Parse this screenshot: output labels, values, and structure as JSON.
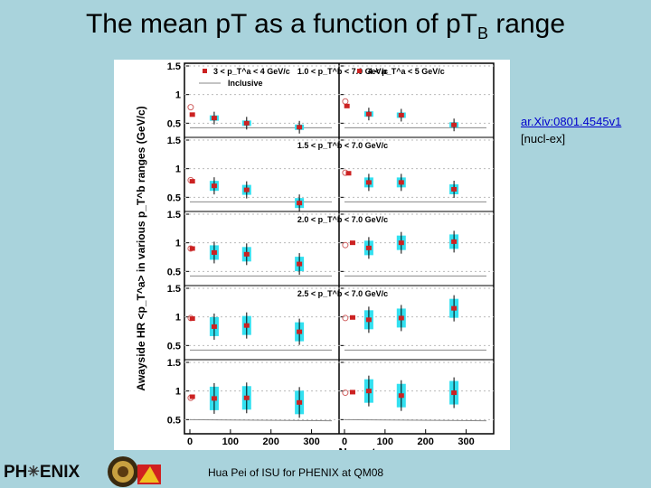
{
  "slide": {
    "title_main": "The mean pT as a function of pT",
    "title_sub": "B",
    "title_tail": " range",
    "reference_link": "ar.Xiv:0801.4545v1",
    "reference_tag": "[nucl-ex]",
    "footer": "Hua Pei of ISU for PHENIX at QM08",
    "logo_left": "PH",
    "logo_right": "ENIX",
    "logo_star": "✳"
  },
  "colors": {
    "background": "#a9d3dc",
    "marker": "#cc2222",
    "syst_band": "#33e0f0",
    "open_marker": "#d06060",
    "inclusive_line": "#888888"
  },
  "chart_data": {
    "type": "scatter",
    "ylabel": "Awayside HR <p_T^a> in various p_T^b ranges (GeV/c)",
    "xlabel": "N_part",
    "xlim": [
      0,
      350
    ],
    "ylim": [
      0.3,
      1.5
    ],
    "x_ticks": [
      "0",
      "100",
      "200",
      "300"
    ],
    "y_ticks": [
      "0.5",
      "1",
      "1.5"
    ],
    "legend": [
      "3 < p_T^a < 4 GeV/c",
      "4 < p_T^a < 5 GeV/c",
      "Inclusive"
    ],
    "columns": [
      "3 < p_T^a < 4 GeV/c",
      "4 < p_T^a < 5 GeV/c"
    ],
    "rows": [
      {
        "label": "1.0 < p_T^b < 7.0 GeV/c",
        "series": [
          {
            "name": "3 < p_T^a < 4 GeV/c",
            "points": [
              {
                "x": 2,
                "y": 0.78,
                "open": true
              },
              {
                "x": 6,
                "y": 0.65
              },
              {
                "x": 60,
                "y": 0.59
              },
              {
                "x": 140,
                "y": 0.5
              },
              {
                "x": 270,
                "y": 0.43
              }
            ],
            "inclusive": [
              {
                "x": 0,
                "y": 0.42
              },
              {
                "x": 350,
                "y": 0.42
              }
            ]
          },
          {
            "name": "4 < p_T^a < 5 GeV/c",
            "points": [
              {
                "x": 2,
                "y": 0.88,
                "open": true
              },
              {
                "x": 6,
                "y": 0.8
              },
              {
                "x": 60,
                "y": 0.66
              },
              {
                "x": 140,
                "y": 0.64
              },
              {
                "x": 270,
                "y": 0.47
              }
            ],
            "inclusive": [
              {
                "x": 0,
                "y": 0.42
              },
              {
                "x": 350,
                "y": 0.42
              }
            ]
          }
        ]
      },
      {
        "label": "1.5 < p_T^b < 7.0 GeV/c",
        "series": [
          {
            "name": "3 < p_T^a < 4 GeV/c",
            "points": [
              {
                "x": 2,
                "y": 0.8,
                "open": true
              },
              {
                "x": 6,
                "y": 0.78
              },
              {
                "x": 60,
                "y": 0.7
              },
              {
                "x": 140,
                "y": 0.63
              },
              {
                "x": 270,
                "y": 0.4
              }
            ],
            "inclusive": [
              {
                "x": 0,
                "y": 0.42
              },
              {
                "x": 350,
                "y": 0.42
              }
            ]
          },
          {
            "name": "4 < p_T^a < 5 GeV/c",
            "points": [
              {
                "x": 2,
                "y": 0.93,
                "open": true
              },
              {
                "x": 10,
                "y": 0.92
              },
              {
                "x": 60,
                "y": 0.76
              },
              {
                "x": 140,
                "y": 0.76
              },
              {
                "x": 270,
                "y": 0.64
              }
            ],
            "inclusive": [
              {
                "x": 0,
                "y": 0.42
              },
              {
                "x": 350,
                "y": 0.42
              }
            ]
          }
        ]
      },
      {
        "label": "2.0 < p_T^b < 7.0 GeV/c",
        "series": [
          {
            "name": "3 < p_T^a < 4 GeV/c",
            "points": [
              {
                "x": 2,
                "y": 0.9,
                "open": true
              },
              {
                "x": 6,
                "y": 0.9
              },
              {
                "x": 60,
                "y": 0.83
              },
              {
                "x": 140,
                "y": 0.8
              },
              {
                "x": 270,
                "y": 0.63
              }
            ],
            "inclusive": [
              {
                "x": 0,
                "y": 0.42
              },
              {
                "x": 350,
                "y": 0.42
              }
            ]
          },
          {
            "name": "4 < p_T^a < 5 GeV/c",
            "points": [
              {
                "x": 2,
                "y": 0.96,
                "open": true
              },
              {
                "x": 20,
                "y": 1.0
              },
              {
                "x": 60,
                "y": 0.91
              },
              {
                "x": 140,
                "y": 1.0
              },
              {
                "x": 270,
                "y": 1.02
              }
            ],
            "inclusive": [
              {
                "x": 0,
                "y": 0.42
              },
              {
                "x": 350,
                "y": 0.42
              }
            ]
          }
        ]
      },
      {
        "label": "2.5 < p_T^b < 7.0 GeV/c",
        "series": [
          {
            "name": "3 < p_T^a < 4 GeV/c",
            "points": [
              {
                "x": 2,
                "y": 0.98,
                "open": true
              },
              {
                "x": 6,
                "y": 0.97
              },
              {
                "x": 60,
                "y": 0.83
              },
              {
                "x": 140,
                "y": 0.85
              },
              {
                "x": 270,
                "y": 0.74
              }
            ],
            "inclusive": [
              {
                "x": 0,
                "y": 0.42
              },
              {
                "x": 350,
                "y": 0.42
              }
            ]
          },
          {
            "name": "4 < p_T^a < 5 GeV/c",
            "points": [
              {
                "x": 2,
                "y": 0.98,
                "open": true
              },
              {
                "x": 20,
                "y": 0.99
              },
              {
                "x": 60,
                "y": 0.95
              },
              {
                "x": 140,
                "y": 0.98
              },
              {
                "x": 270,
                "y": 1.15
              }
            ],
            "inclusive": [
              {
                "x": 0,
                "y": 0.42
              },
              {
                "x": 350,
                "y": 0.42
              }
            ]
          }
        ]
      },
      {
        "label": "",
        "series": [
          {
            "name": "3 < p_T^a < 4 GeV/c",
            "points": [
              {
                "x": 2,
                "y": 0.88,
                "open": true
              },
              {
                "x": 6,
                "y": 0.9
              },
              {
                "x": 60,
                "y": 0.87
              },
              {
                "x": 140,
                "y": 0.88
              },
              {
                "x": 270,
                "y": 0.8
              }
            ],
            "inclusive": [
              {
                "x": 0,
                "y": 0.5
              },
              {
                "x": 350,
                "y": 0.48
              }
            ]
          },
          {
            "name": "4 < p_T^a < 5 GeV/c",
            "points": [
              {
                "x": 2,
                "y": 0.97,
                "open": true
              },
              {
                "x": 20,
                "y": 0.98
              },
              {
                "x": 60,
                "y": 1.0
              },
              {
                "x": 140,
                "y": 0.92
              },
              {
                "x": 270,
                "y": 0.97
              }
            ],
            "inclusive": [
              {
                "x": 0,
                "y": 0.5
              },
              {
                "x": 350,
                "y": 0.48
              }
            ]
          }
        ]
      }
    ]
  }
}
